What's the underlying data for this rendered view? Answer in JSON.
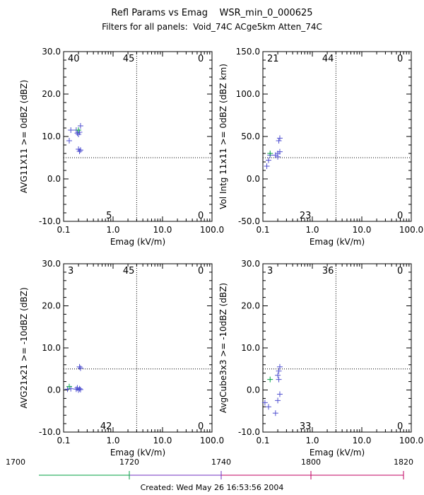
{
  "header": {
    "title": "Refl Params vs Emag    WSR_min_0_000625",
    "subtitle": "Filters for all panels:  Void_74C ACge5km Atten_74C"
  },
  "footer": {
    "created": "Created: Wed May 26 16:53:56 2004",
    "timeline_ticks": [
      "1700",
      "1720",
      "1740",
      "1800",
      "1820"
    ],
    "timeline_colors": [
      "#00a040",
      "#7030c0",
      "#c00060"
    ]
  },
  "colors": {
    "plus": "#5050d0",
    "green_plus": "#00a040",
    "axis": "#000000",
    "ref": "#000000"
  },
  "chart_data": [
    {
      "type": "scatter",
      "xlabel": "Emag (kV/m)",
      "ylabel": "AVG11X11 >= 0dBZ (dBZ)",
      "xscale": "log",
      "xlim": [
        0.1,
        100.0
      ],
      "ylim": [
        -10.0,
        30.0
      ],
      "xticks": [
        "0.1",
        "1.0",
        "10.0",
        "100.0"
      ],
      "yticks": [
        "-10.0",
        "0.0",
        "10.0",
        "20.0",
        "30.0"
      ],
      "ref_x": 3.0,
      "ref_y": 5.0,
      "counts": {
        "top_left": "40",
        "top_mid": "45",
        "top_right": "0",
        "bottom_left": "5",
        "bottom_right": "0"
      },
      "points": [
        [
          0.13,
          9.0
        ],
        [
          0.14,
          11.5
        ],
        [
          0.18,
          11.5
        ],
        [
          0.19,
          10.8
        ],
        [
          0.2,
          10.5
        ],
        [
          0.21,
          11.0
        ],
        [
          0.22,
          12.5
        ],
        [
          0.2,
          7.0
        ],
        [
          0.21,
          6.5
        ],
        [
          0.22,
          6.8
        ]
      ],
      "green_points": [
        [
          0.2,
          11.5
        ]
      ]
    },
    {
      "type": "scatter",
      "xlabel": "Emag (kV/m)",
      "ylabel": "Vol Intg 11x11 >= 0dBZ (dBZ km)",
      "xscale": "log",
      "xlim": [
        0.1,
        100.0
      ],
      "ylim": [
        -50.0,
        150.0
      ],
      "xticks": [
        "0.1",
        "1.0",
        "10.0",
        "100.0"
      ],
      "yticks": [
        "-50.0",
        "0.0",
        "50.0",
        "100.0",
        "150.0"
      ],
      "ref_x": 3.0,
      "ref_y": 25.0,
      "counts": {
        "top_left": "21",
        "top_mid": "44",
        "top_right": "0",
        "bottom_left": "23",
        "bottom_right": "0"
      },
      "points": [
        [
          0.12,
          15.0
        ],
        [
          0.13,
          22.0
        ],
        [
          0.14,
          28.0
        ],
        [
          0.18,
          28.0
        ],
        [
          0.2,
          30.0
        ],
        [
          0.21,
          45.0
        ],
        [
          0.22,
          48.0
        ],
        [
          0.2,
          26.0
        ],
        [
          0.22,
          32.0
        ]
      ],
      "green_points": [
        [
          0.14,
          30.0
        ]
      ]
    },
    {
      "type": "scatter",
      "xlabel": "Emag (kV/m)",
      "ylabel": "AVG21x21 >= -10dBZ (dBZ)",
      "xscale": "log",
      "xlim": [
        0.1,
        100.0
      ],
      "ylim": [
        -10.0,
        30.0
      ],
      "xticks": [
        "0.1",
        "1.0",
        "10.0",
        "100.0"
      ],
      "yticks": [
        "-10.0",
        "0.0",
        "10.0",
        "20.0",
        "30.0"
      ],
      "ref_x": 3.0,
      "ref_y": 5.0,
      "counts": {
        "top_left": "3",
        "top_mid": "45",
        "top_right": "0",
        "bottom_left": "42",
        "bottom_right": "0"
      },
      "points": [
        [
          0.12,
          0.2
        ],
        [
          0.14,
          0.3
        ],
        [
          0.18,
          0.2
        ],
        [
          0.19,
          0.5
        ],
        [
          0.2,
          0.0
        ],
        [
          0.21,
          0.3
        ],
        [
          0.22,
          0.1
        ],
        [
          0.21,
          5.5
        ],
        [
          0.22,
          5.2
        ]
      ],
      "green_points": [
        [
          0.13,
          0.8
        ]
      ]
    },
    {
      "type": "scatter",
      "xlabel": "Emag (kV/m)",
      "ylabel": "AvgCube3x3 >= -10dBZ (dBZ)",
      "xscale": "log",
      "xlim": [
        0.1,
        100.0
      ],
      "ylim": [
        -10.0,
        30.0
      ],
      "xticks": [
        "0.1",
        "1.0",
        "10.0",
        "100.0"
      ],
      "yticks": [
        "-10.0",
        "0.0",
        "10.0",
        "20.0",
        "30.0"
      ],
      "ref_x": 3.0,
      "ref_y": 5.0,
      "counts": {
        "top_left": "3",
        "top_mid": "36",
        "top_right": "0",
        "bottom_left": "33",
        "bottom_right": "0"
      },
      "points": [
        [
          0.11,
          -3.0
        ],
        [
          0.13,
          -4.0
        ],
        [
          0.18,
          -5.5
        ],
        [
          0.2,
          -2.5
        ],
        [
          0.22,
          -1.0
        ],
        [
          0.2,
          3.5
        ],
        [
          0.21,
          4.5
        ],
        [
          0.22,
          5.5
        ],
        [
          0.21,
          2.5
        ]
      ],
      "green_points": [
        [
          0.14,
          2.5
        ]
      ]
    }
  ]
}
